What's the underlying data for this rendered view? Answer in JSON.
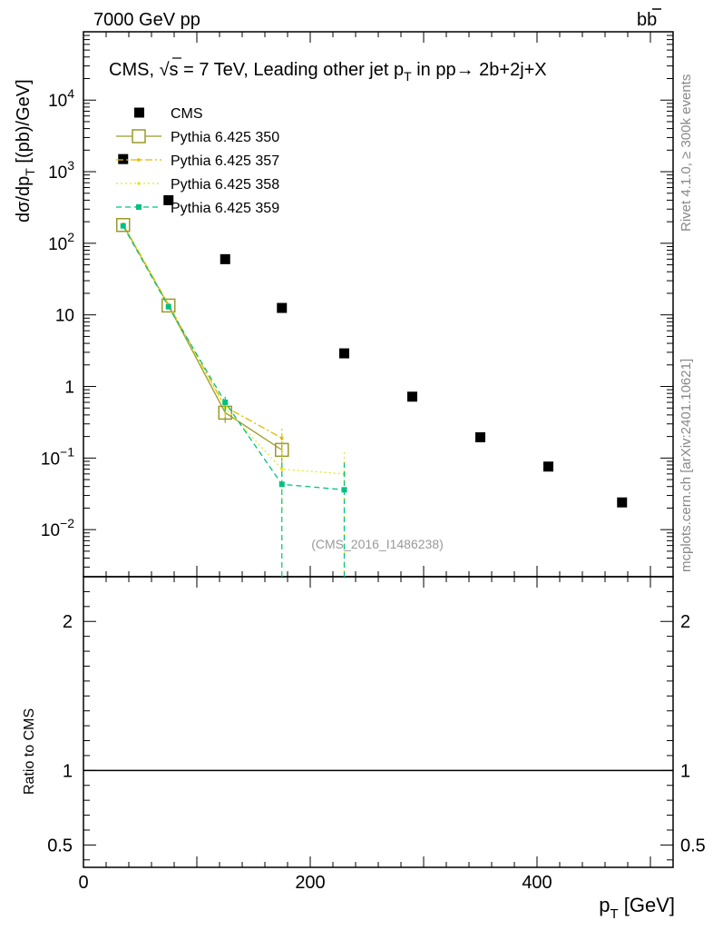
{
  "header": {
    "left": "7000 GeV pp",
    "right_main": "b",
    "right_bar": "b"
  },
  "side_text": {
    "rivet": "Rivet 4.1.0, ≥ 300k events",
    "mcplots": "mcplots.cern.ch [arXiv:2401.10621]"
  },
  "chart_data": {
    "type": "scatter",
    "title": "CMS, √s = 7 TeV, Leading other jet p_T in pp→  2b+2j+X",
    "title_parts": {
      "a": "CMS, ",
      "sqrt": "√",
      "b": "s = 7 TeV, Leading other jet p",
      "sub": "T",
      "c": " in pp→  2b+2j+X"
    },
    "watermark": "(CMS_2016_I1486238)",
    "ylabel": {
      "a": "dσ/dp",
      "sub": "T",
      "b": " [(pb)/GeV]"
    },
    "xlabel": {
      "a": "p",
      "sub": "T",
      "b": " [GeV]"
    },
    "ratio_ylabel": "Ratio to CMS",
    "xlim": [
      0,
      520
    ],
    "ylim": [
      0.0022,
      90000
    ],
    "y_scale": "log",
    "ratio_ylim": [
      0.35,
      2.3
    ],
    "legend_position": "top-left",
    "x_ticks": [
      {
        "value": 0,
        "label": "0"
      },
      {
        "value": 200,
        "label": "200"
      },
      {
        "value": 400,
        "label": "400"
      }
    ],
    "y_ticks": [
      {
        "value": 0.01,
        "base": "10",
        "exp": "−2"
      },
      {
        "value": 0.1,
        "base": "10",
        "exp": "−1"
      },
      {
        "value": 1,
        "base": "1",
        "exp": ""
      },
      {
        "value": 10,
        "base": "10",
        "exp": ""
      },
      {
        "value": 100,
        "base": "10",
        "exp": "2"
      },
      {
        "value": 1000,
        "base": "10",
        "exp": "3"
      },
      {
        "value": 10000,
        "base": "10",
        "exp": "4"
      }
    ],
    "ratio_ticks": [
      {
        "value": 0.5,
        "label": "0.5"
      },
      {
        "value": 1,
        "label": "1"
      },
      {
        "value": 2,
        "label": "2"
      }
    ],
    "series": [
      {
        "name": "CMS",
        "color": "#000000",
        "style": "data",
        "x": [
          35,
          75,
          125,
          175,
          230,
          290,
          350,
          410,
          475
        ],
        "y": [
          1500,
          400,
          60,
          12.5,
          2.9,
          0.72,
          0.195,
          0.076,
          0.024
        ]
      },
      {
        "name": "Pythia 6.425 350",
        "color": "#9a9a2a",
        "style": "solid",
        "marker": "open-square",
        "x": [
          35,
          75,
          125,
          175
        ],
        "y": [
          180,
          13.5,
          0.43,
          0.13
        ],
        "err": [
          0,
          0,
          0.12,
          0.04
        ]
      },
      {
        "name": "Pythia 6.425 357",
        "color": "#e6b800",
        "style": "dashdot",
        "marker": "small-dot",
        "x": [
          35,
          75,
          125,
          175
        ],
        "y": [
          185,
          14,
          0.52,
          0.19
        ],
        "err": [
          0,
          0,
          0.14,
          0.08
        ]
      },
      {
        "name": "Pythia 6.425 358",
        "color": "#e6e620",
        "style": "dotted",
        "marker": "small-dot",
        "x": [
          35,
          75,
          125,
          175,
          230
        ],
        "y": [
          182,
          13.6,
          0.5,
          0.07,
          0.06
        ],
        "err": [
          0,
          0,
          0.12,
          0.05,
          0.065
        ]
      },
      {
        "name": "Pythia 6.425 359",
        "color": "#00c080",
        "style": "dashed",
        "marker": "filled-square",
        "x": [
          35,
          75,
          125,
          175,
          230
        ],
        "y": [
          175,
          13,
          0.6,
          0.043,
          0.036
        ],
        "err": [
          0,
          0,
          0.15,
          0.05,
          0.05
        ]
      }
    ],
    "ratio_line": 1
  }
}
